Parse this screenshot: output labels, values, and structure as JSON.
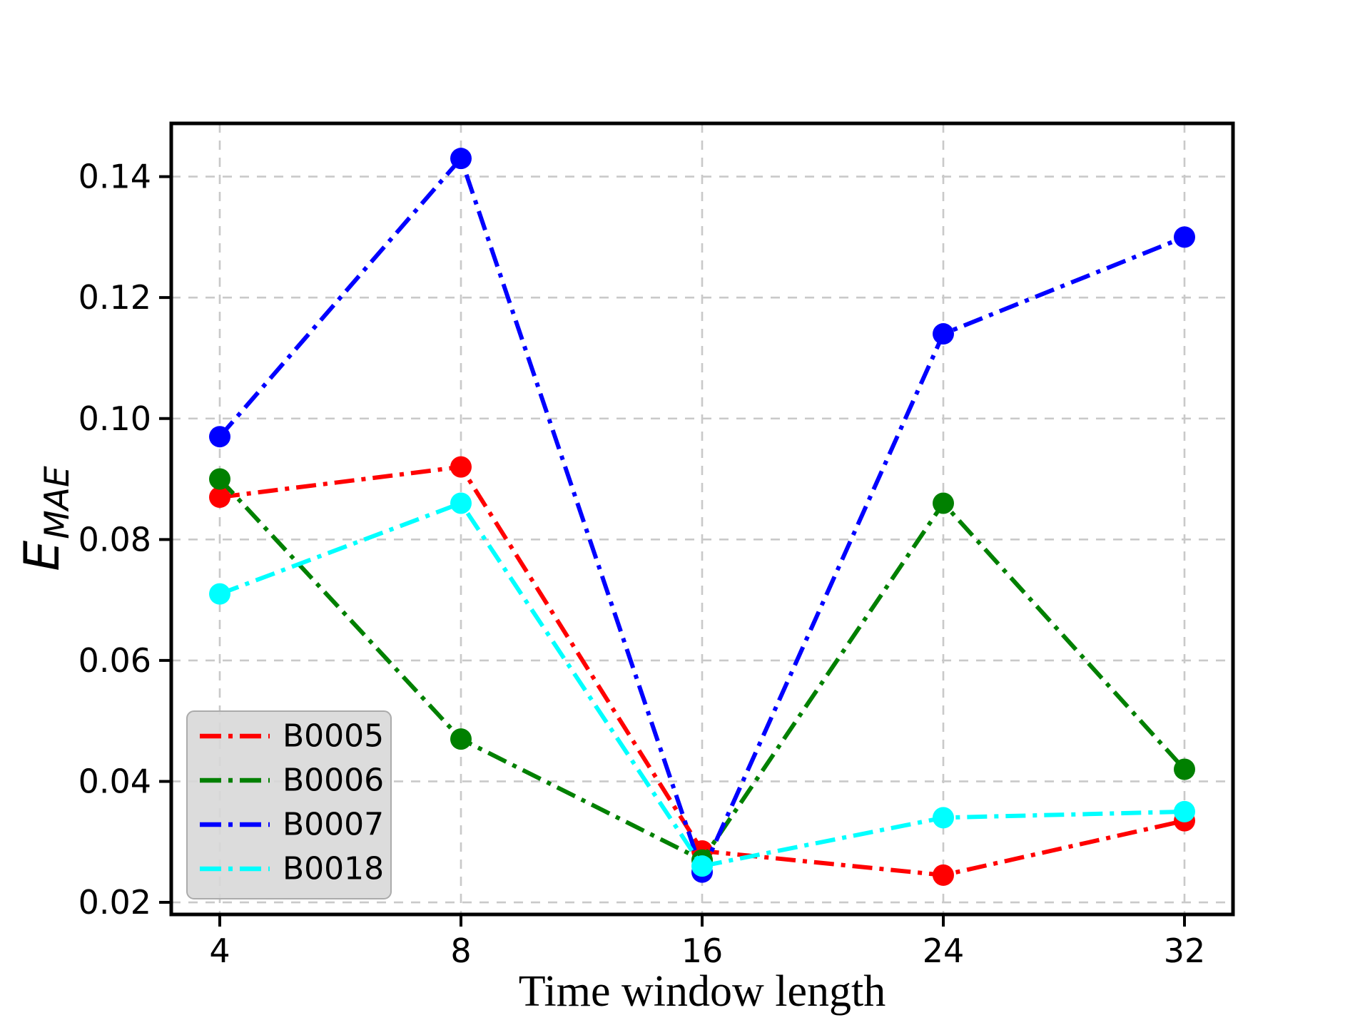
{
  "chart_data": {
    "type": "line",
    "title": "",
    "xlabel": "Time window length",
    "ylabel": "E_MAE",
    "ylabel_main": "E",
    "ylabel_sub": "MAE",
    "x_categories": [
      4,
      8,
      16,
      24,
      32
    ],
    "x_tick_labels": [
      "4",
      "8",
      "16",
      "24",
      "32"
    ],
    "y_ticks": [
      0.02,
      0.04,
      0.06,
      0.08,
      0.1,
      0.12,
      0.14
    ],
    "y_tick_labels": [
      "0.02",
      "0.04",
      "0.06",
      "0.08",
      "0.10",
      "0.12",
      "0.14"
    ],
    "ylim": [
      0.018,
      0.1488
    ],
    "grid": true,
    "grid_style": "dashed",
    "line_style": "dash-dot",
    "marker": "circle",
    "legend_position": "lower-left",
    "series": [
      {
        "name": "B0005",
        "color": "#ff0000",
        "values": [
          0.087,
          0.092,
          0.0285,
          0.0245,
          0.0335
        ]
      },
      {
        "name": "B0006",
        "color": "#008000",
        "values": [
          0.09,
          0.047,
          0.027,
          0.086,
          0.042
        ]
      },
      {
        "name": "B0007",
        "color": "#0000ff",
        "values": [
          0.097,
          0.143,
          0.025,
          0.114,
          0.13
        ]
      },
      {
        "name": "B0018",
        "color": "#00ffff",
        "values": [
          0.071,
          0.086,
          0.026,
          0.034,
          0.035
        ]
      }
    ],
    "colors": {
      "grid": "#c9c9c9",
      "spine": "#000000",
      "legend_face": "#d8d8d8",
      "legend_edge": "#ababab"
    }
  }
}
